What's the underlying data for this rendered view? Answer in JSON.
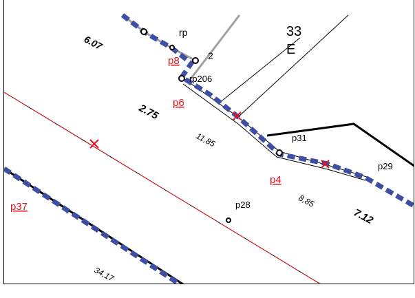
{
  "map": {
    "parcel_areas": [
      "6.07",
      "2.75",
      "7.12"
    ],
    "distances": [
      "11,85",
      "8,85",
      "34,17"
    ],
    "black_labels": [
      "rp",
      "2",
      "rp206",
      "p31",
      "p29",
      "p28"
    ],
    "parcel_number": "33",
    "parcel_letter": "E",
    "red_point_labels": [
      "p8",
      "p6",
      "p4",
      "p37"
    ],
    "colors": {
      "boundary_dashed": "#3e4fa3",
      "red_marker": "#e8121c",
      "grey_line": "#a0a0a0",
      "black_line": "#000000"
    }
  }
}
